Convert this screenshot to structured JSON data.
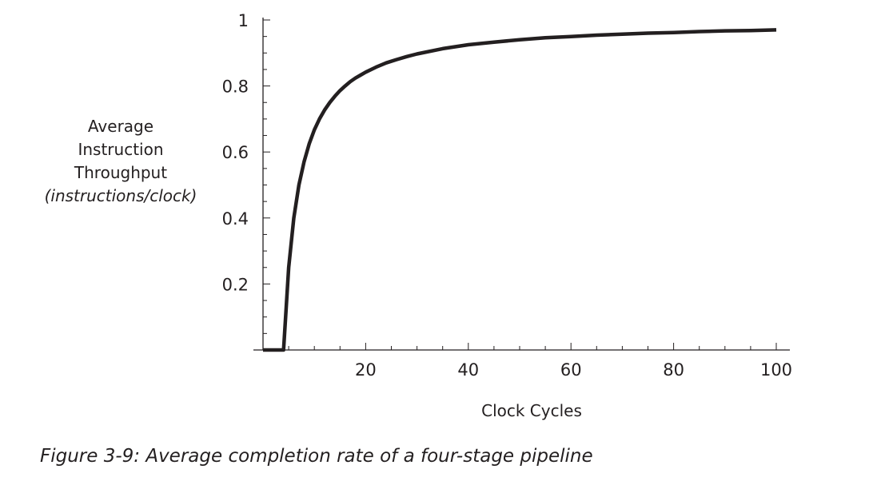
{
  "chart_data": {
    "type": "line",
    "title": "",
    "xlabel": "Clock Cycles",
    "ylabel": [
      "Average",
      "Instruction",
      "Throughput",
      "(instructions/clock)"
    ],
    "xlim": [
      0,
      100
    ],
    "ylim": [
      0,
      1
    ],
    "x_ticks": [
      20,
      40,
      60,
      80,
      100
    ],
    "x_tick_labels": [
      "20",
      "40",
      "60",
      "80",
      "100"
    ],
    "y_ticks": [
      0.2,
      0.4,
      0.6,
      0.8,
      1
    ],
    "y_tick_labels": [
      "0.2",
      "0.4",
      "0.6",
      "0.8",
      "1"
    ],
    "grid": false,
    "color": "#231f20",
    "series": [
      {
        "x": [
          0,
          1,
          2,
          3,
          4,
          5,
          6,
          7,
          8,
          9,
          10,
          11,
          12,
          13,
          14,
          15,
          16,
          17,
          18,
          19,
          20,
          22,
          24,
          26,
          28,
          30,
          35,
          40,
          45,
          50,
          55,
          60,
          65,
          70,
          75,
          80,
          85,
          90,
          95,
          100
        ],
        "y": [
          0,
          0,
          0,
          0,
          0,
          0.25,
          0.4,
          0.5,
          0.571,
          0.625,
          0.667,
          0.7,
          0.727,
          0.75,
          0.769,
          0.786,
          0.8,
          0.813,
          0.824,
          0.833,
          0.842,
          0.857,
          0.87,
          0.88,
          0.889,
          0.897,
          0.913,
          0.925,
          0.933,
          0.94,
          0.946,
          0.95,
          0.954,
          0.957,
          0.96,
          0.962,
          0.965,
          0.967,
          0.968,
          0.97
        ]
      }
    ]
  },
  "caption": "Figure 3-9: Average completion rate of a four-stage pipeline"
}
